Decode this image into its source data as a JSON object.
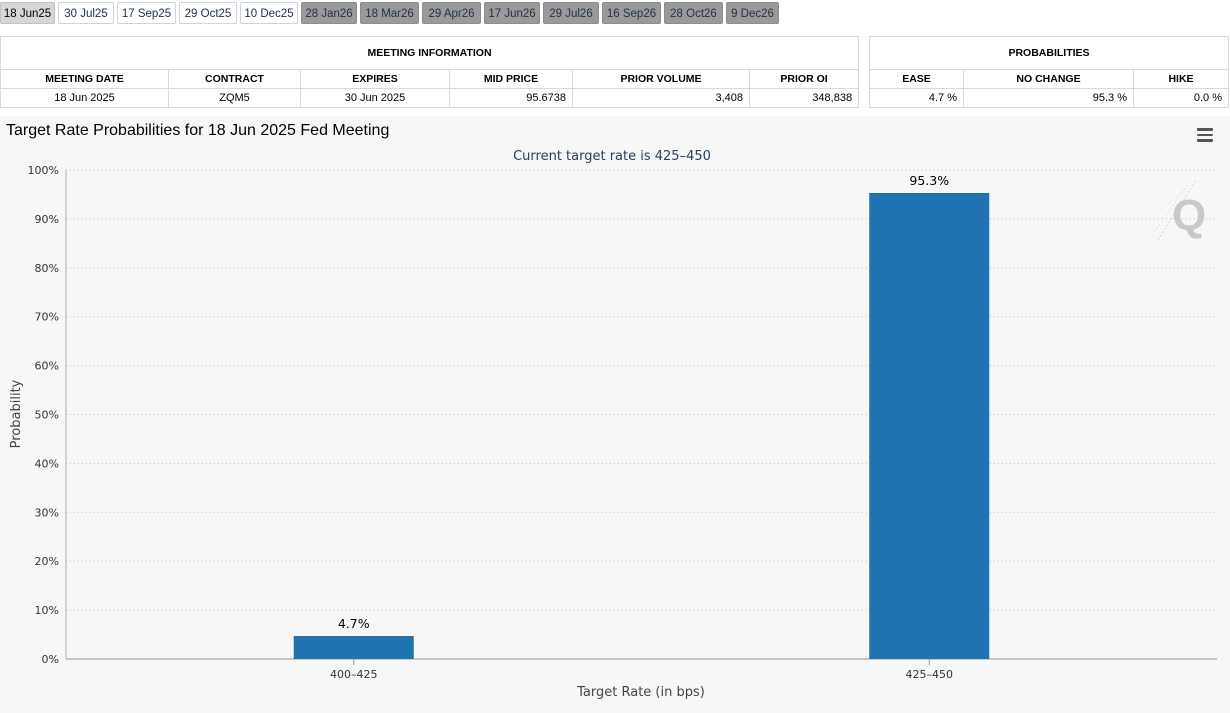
{
  "tabs": [
    {
      "label": "18 Jun25",
      "state": "active"
    },
    {
      "label": "30 Jul25",
      "state": "normal"
    },
    {
      "label": "17 Sep25",
      "state": "normal"
    },
    {
      "label": "29 Oct25",
      "state": "normal"
    },
    {
      "label": "10 Dec25",
      "state": "normal"
    },
    {
      "label": "28 Jan26",
      "state": "gray"
    },
    {
      "label": "18 Mar26",
      "state": "gray"
    },
    {
      "label": "29 Apr26",
      "state": "gray"
    },
    {
      "label": "17 Jun26",
      "state": "gray"
    },
    {
      "label": "29 Jul26",
      "state": "gray"
    },
    {
      "label": "16 Sep26",
      "state": "gray"
    },
    {
      "label": "28 Oct26",
      "state": "gray"
    },
    {
      "label": "9 Dec26",
      "state": "gray"
    }
  ],
  "meeting_info": {
    "header": "MEETING INFORMATION",
    "columns": [
      "MEETING DATE",
      "CONTRACT",
      "EXPIRES",
      "MID PRICE",
      "PRIOR VOLUME",
      "PRIOR OI"
    ],
    "row": {
      "meeting_date": "18 Jun 2025",
      "contract": "ZQM5",
      "expires": "30 Jun 2025",
      "mid_price": "95.6738",
      "prior_volume": "3,408",
      "prior_oi": "348,838"
    }
  },
  "probabilities": {
    "header": "PROBABILITIES",
    "columns": [
      "EASE",
      "NO CHANGE",
      "HIKE"
    ],
    "row": {
      "ease": "4.7 %",
      "no_change": "95.3 %",
      "hike": "0.0 %"
    }
  },
  "chart": {
    "title": "Target Rate Probabilities for 18 Jun 2025 Fed Meeting",
    "menu_icon": "hamburger-menu-icon",
    "watermark_icon": "q-logo-icon"
  },
  "chart_data": {
    "type": "bar",
    "title": "Target Rate Probabilities for 18 Jun 2025 Fed Meeting",
    "subtitle": "Current target rate is 425–450",
    "categories": [
      "400–425",
      "425–450"
    ],
    "values": [
      4.7,
      95.3
    ],
    "data_labels": [
      "4.7%",
      "95.3%"
    ],
    "xlabel": "Target Rate (in bps)",
    "ylabel": "Probability",
    "ylim": [
      0,
      100
    ],
    "yticks": [
      0,
      10,
      20,
      30,
      40,
      50,
      60,
      70,
      80,
      90,
      100
    ],
    "ytick_labels": [
      "0%",
      "10%",
      "20%",
      "30%",
      "40%",
      "50%",
      "60%",
      "70%",
      "80%",
      "90%",
      "100%"
    ],
    "bar_color": "#1f73b0",
    "grid": true
  }
}
